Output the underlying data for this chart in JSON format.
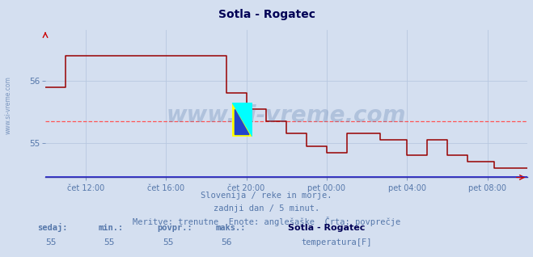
{
  "title": "Sotla - Rogatec",
  "bg_color": "#d4dff0",
  "plot_bg_color": "#d4dff0",
  "line_color": "#990000",
  "avg_line_color": "#ff5555",
  "grid_color": "#b8c8e0",
  "tick_color": "#5577aa",
  "title_color": "#000055",
  "watermark_text": "www.si-vreme.com",
  "watermark_color": "#5577aa",
  "left_label": "www.si-vreme.com",
  "subtitle1": "Slovenija / reke in morje.",
  "subtitle2": "zadnji dan / 5 minut.",
  "subtitle3": "Meritve: trenutne  Enote: anglešaške  Črta: povprečje",
  "footer_labels": [
    "sedaj:",
    "min.:",
    "povpr.:",
    "maks.:"
  ],
  "footer_values": [
    "55",
    "55",
    "55",
    "56"
  ],
  "legend_station": "Sotla - Rogatec",
  "legend_label": "temperatura[F]",
  "legend_color": "#cc0000",
  "ylim": [
    54.45,
    56.82
  ],
  "yticks": [
    55,
    56
  ],
  "avg_value": 55.35,
  "x_labels": [
    "čet 12:00",
    "čet 16:00",
    "čet 20:00",
    "pet 00:00",
    "pet 04:00",
    "pet 08:00"
  ],
  "x_tick_pos": [
    24,
    72,
    120,
    168,
    216,
    264
  ],
  "total_points": 288,
  "step_x": [
    0,
    12,
    12,
    108,
    108,
    120,
    120,
    132,
    132,
    144,
    144,
    156,
    156,
    168,
    168,
    180,
    180,
    200,
    200,
    216,
    216,
    228,
    228,
    240,
    240,
    252,
    252,
    268,
    268,
    288
  ],
  "step_y": [
    55.9,
    55.9,
    56.4,
    56.4,
    55.8,
    55.8,
    55.55,
    55.55,
    55.35,
    55.35,
    55.15,
    55.15,
    54.95,
    54.95,
    54.85,
    54.85,
    55.15,
    55.15,
    55.05,
    55.05,
    54.8,
    54.8,
    55.05,
    55.05,
    54.8,
    54.8,
    54.7,
    54.7,
    54.6,
    54.6
  ]
}
